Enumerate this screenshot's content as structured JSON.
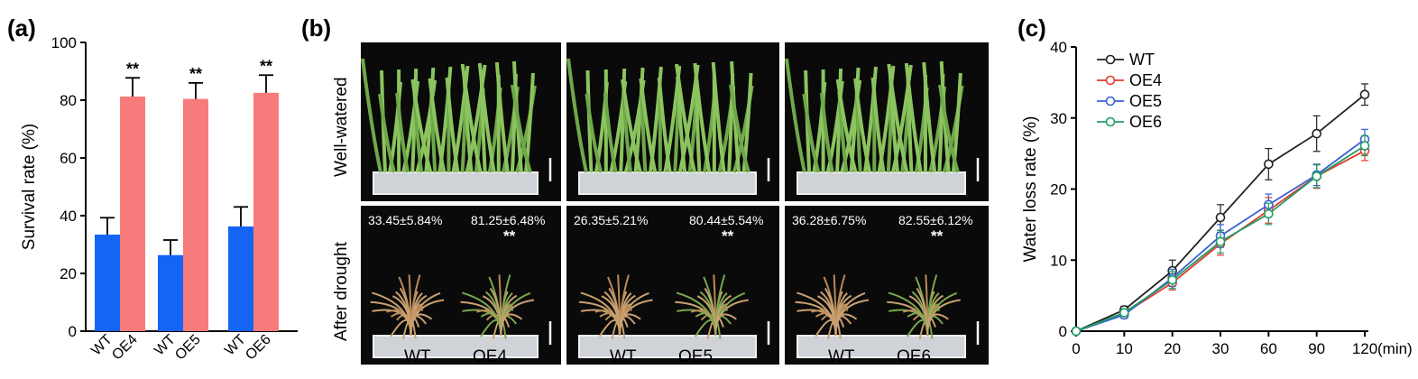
{
  "panel_a": {
    "label": "(a)",
    "chart_data": {
      "type": "bar",
      "title": "",
      "xlabel": "",
      "ylabel": "Survival rate (%)",
      "ylim": [
        0,
        100
      ],
      "yticks": [
        0,
        20,
        40,
        60,
        80,
        100
      ],
      "groups": [
        {
          "labels": [
            "WT",
            "OE4"
          ],
          "values": [
            33.45,
            81.25
          ],
          "errors": [
            5.84,
            6.48
          ],
          "sig": "**"
        },
        {
          "labels": [
            "WT",
            "OE5"
          ],
          "values": [
            26.35,
            80.44
          ],
          "errors": [
            5.21,
            5.54
          ],
          "sig": "**"
        },
        {
          "labels": [
            "WT",
            "OE6"
          ],
          "values": [
            36.28,
            82.55
          ],
          "errors": [
            6.75,
            6.12
          ],
          "sig": "**"
        }
      ],
      "colors": {
        "WT": "#1565f5",
        "OE": "#f77b7b"
      }
    }
  },
  "panel_b": {
    "label": "(b)",
    "row_labels": [
      "Well-watered",
      "After drought"
    ],
    "columns": [
      {
        "wt_label": "WT",
        "oe_label": "OE4",
        "wt_pct": "33.45±5.84%",
        "oe_pct": "81.25±6.48%",
        "sig": "**"
      },
      {
        "wt_label": "WT",
        "oe_label": "OE5",
        "wt_pct": "26.35±5.21%",
        "oe_pct": "80.44±5.54%",
        "sig": "**"
      },
      {
        "wt_label": "WT",
        "oe_label": "OE6",
        "wt_pct": "36.28±6.75%",
        "oe_pct": "82.55±6.12%",
        "sig": "**"
      }
    ]
  },
  "panel_c": {
    "label": "(c)",
    "chart_data": {
      "type": "line",
      "title": "",
      "xlabel": "(min)",
      "ylabel": "Water loss rate (%)",
      "x": [
        "0",
        "10",
        "20",
        "30",
        "60",
        "90",
        "120"
      ],
      "ylim": [
        0,
        40
      ],
      "yticks": [
        0,
        10,
        20,
        30,
        40
      ],
      "legend_position": "top-left",
      "series": [
        {
          "name": "WT",
          "color": "#222222",
          "values": [
            0,
            3.0,
            8.5,
            16.0,
            23.5,
            27.8,
            33.3
          ],
          "errors": [
            0.3,
            0.5,
            1.5,
            1.8,
            2.2,
            2.5,
            1.5
          ]
        },
        {
          "name": "OE4",
          "color": "#e23b2e",
          "values": [
            0,
            2.5,
            6.8,
            12.3,
            17.0,
            21.8,
            25.4
          ],
          "errors": [
            0.3,
            0.5,
            1.0,
            1.6,
            1.8,
            1.7,
            1.4
          ]
        },
        {
          "name": "OE5",
          "color": "#3a5fd6",
          "values": [
            0,
            2.3,
            7.5,
            13.4,
            17.8,
            22.0,
            27.0
          ],
          "errors": [
            0.3,
            0.5,
            1.2,
            1.6,
            1.5,
            1.5,
            1.4
          ]
        },
        {
          "name": "OE6",
          "color": "#1f9d63",
          "values": [
            0,
            2.6,
            7.2,
            12.6,
            16.5,
            21.8,
            26.1
          ],
          "errors": [
            0.3,
            0.5,
            1.2,
            1.6,
            1.5,
            1.6,
            1.4
          ]
        }
      ]
    }
  }
}
